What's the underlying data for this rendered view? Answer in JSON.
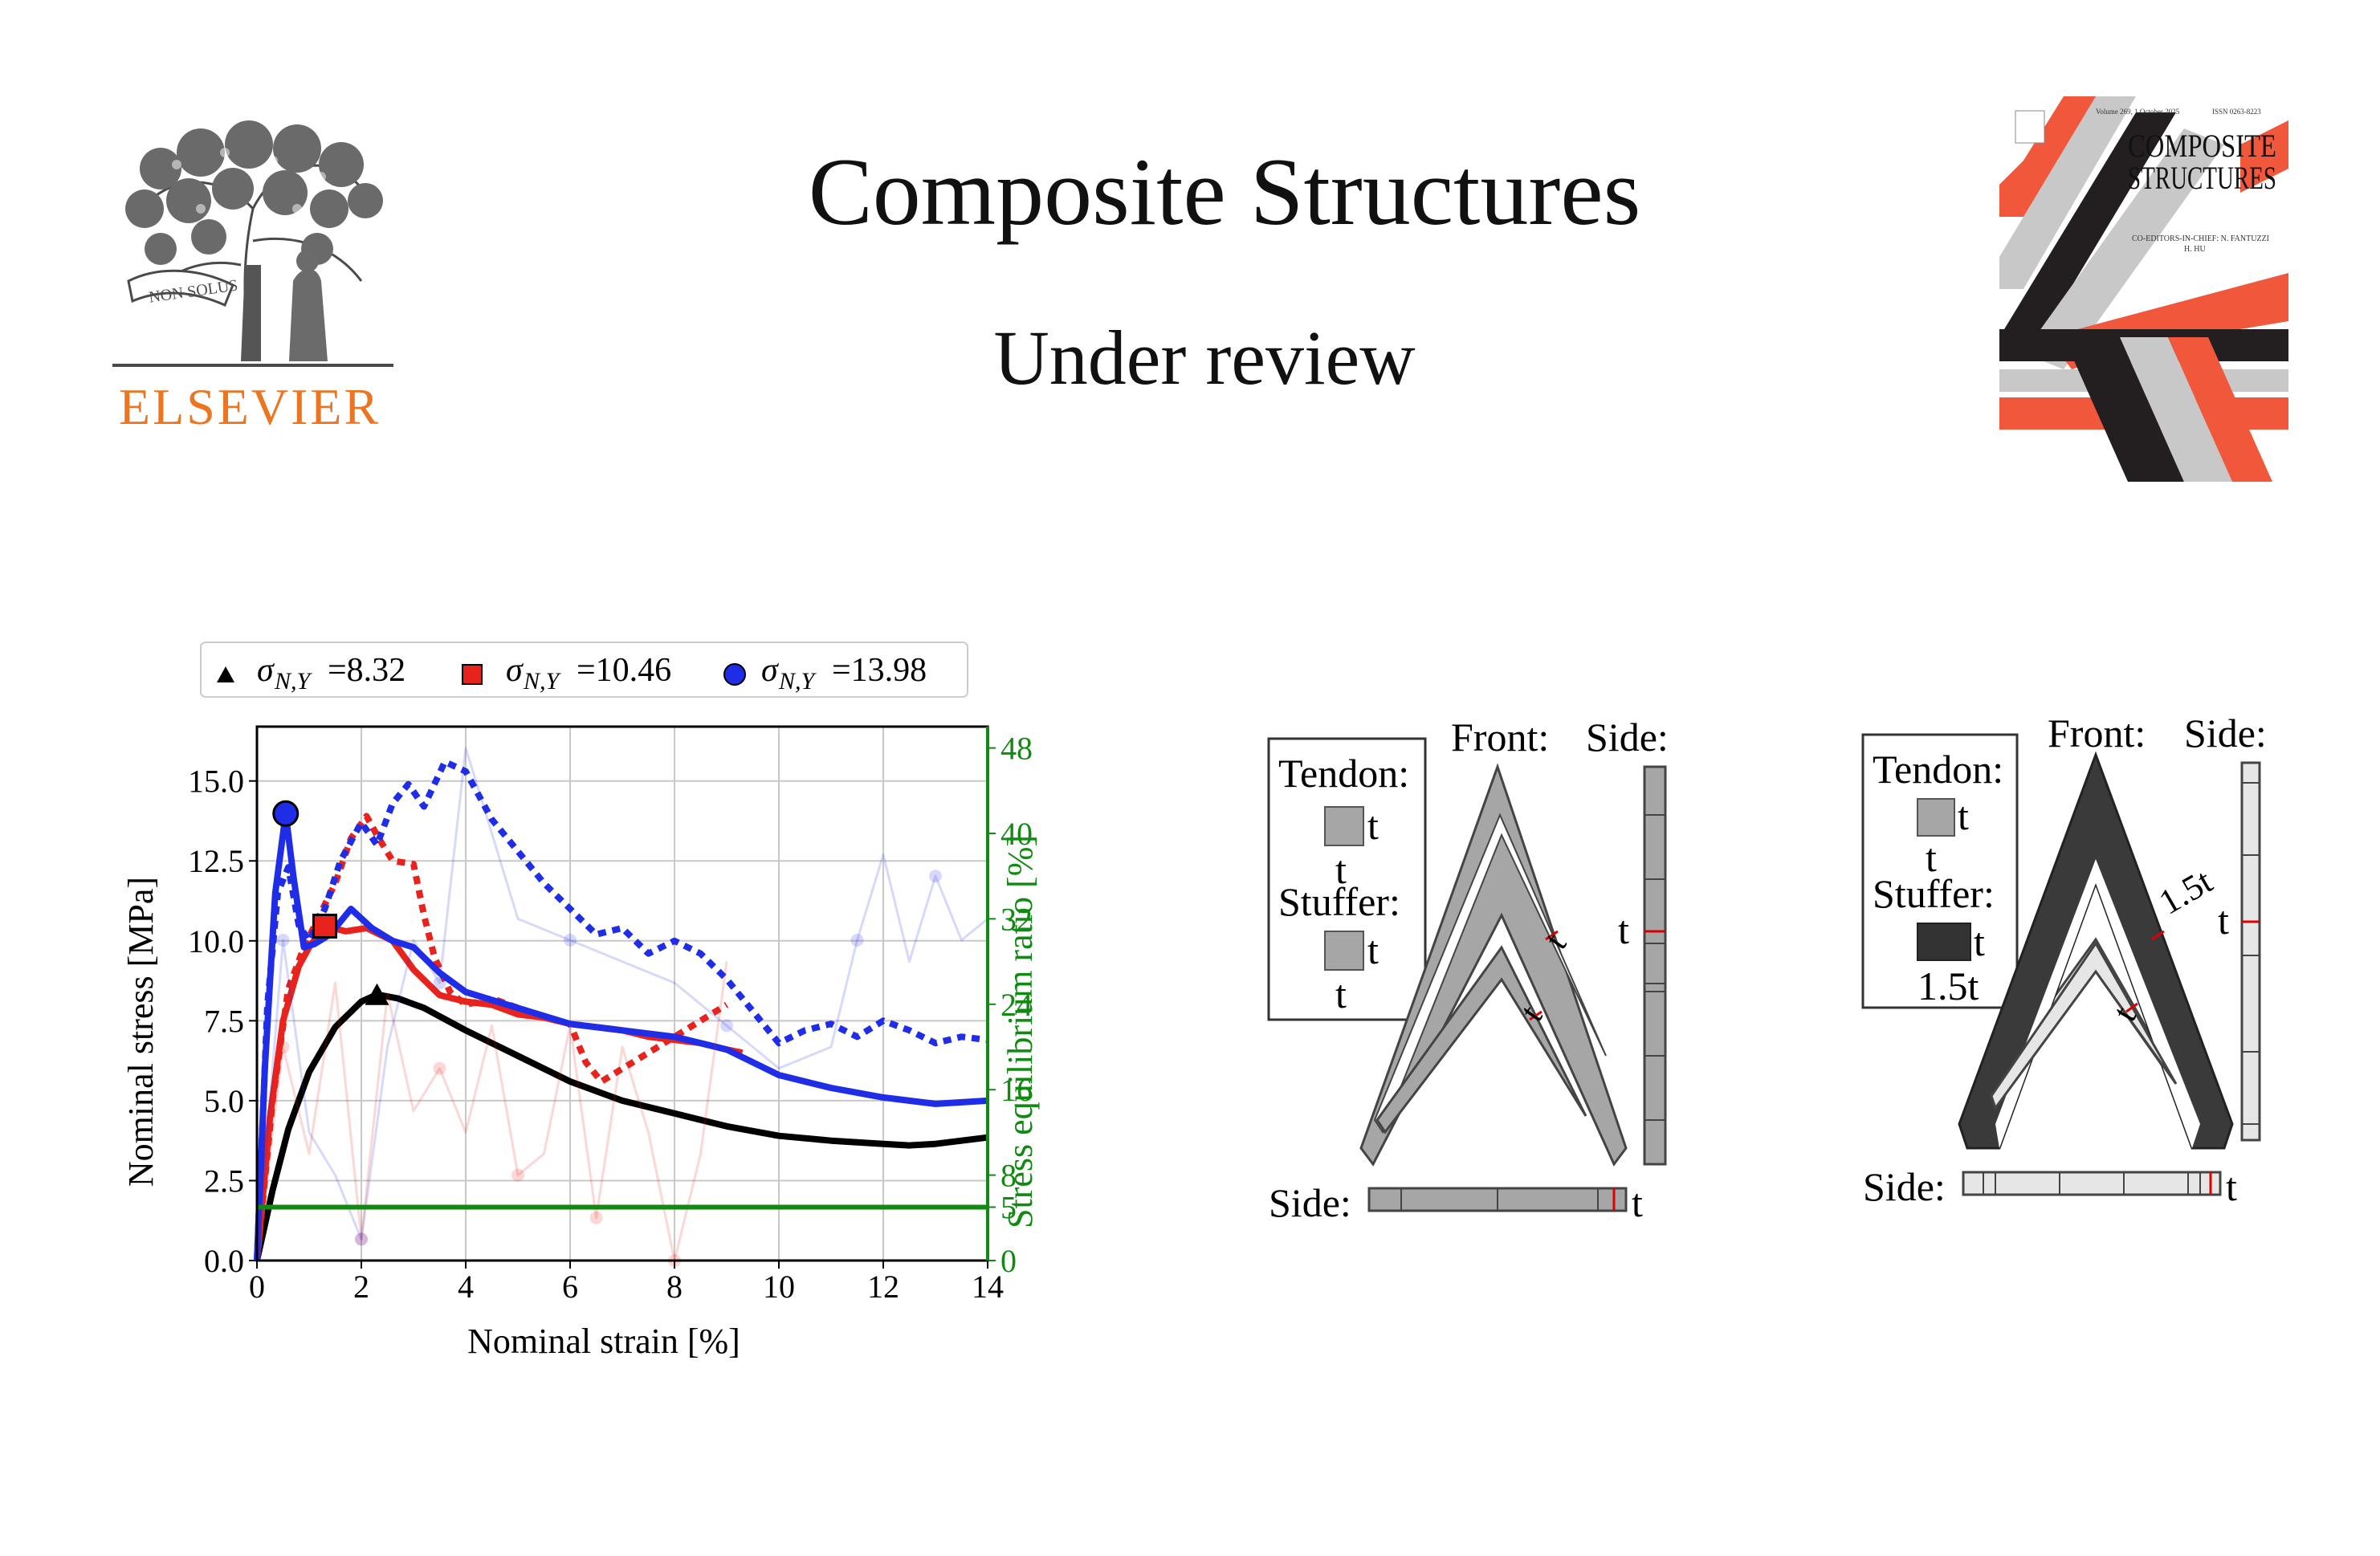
{
  "header": {
    "journal_title": "Composite Structures",
    "status": "Under review",
    "publisher_logo": {
      "icon": "elsevier-tree-icon",
      "wordmark": "ELSEVIER",
      "motto": "NON SOLUS",
      "color": "#ee7520"
    },
    "cover": {
      "title_line1": "COMPOSITE",
      "title_line2": "STRUCTURES",
      "top_left_text": "Volume 269, 1 October 2025",
      "top_right_text": "ISSN 0263-8223",
      "editors_line1": "CO-EDITORS-IN-CHIEF: N. FANTUZZI",
      "editors_line2": "H. HU",
      "colors": [
        "#f0573b",
        "#231f20",
        "#c8c8c8"
      ]
    }
  },
  "chart_data": {
    "type": "line",
    "xlabel": "Nominal strain [%]",
    "ylabel": "Nominal stress [MPa]",
    "y2label": "Stress equilibrium ratio [%]",
    "xlim": [
      0,
      14
    ],
    "ylim": [
      0,
      16.7
    ],
    "y2lim": [
      0,
      50
    ],
    "xticks": [
      "0",
      "2",
      "4",
      "6",
      "8",
      "10",
      "12",
      "14"
    ],
    "yticks": [
      "0.0",
      "2.5",
      "5.0",
      "7.5",
      "10.0",
      "12.5",
      "15.0"
    ],
    "y2ticks": [
      "0",
      "5",
      "8",
      "16",
      "24",
      "32",
      "40",
      "48"
    ],
    "grid": true,
    "legend_position": "top",
    "legend": [
      {
        "marker": "triangle",
        "color": "#000000",
        "label": "σ",
        "sub": "N,Y",
        "value": "=8.32"
      },
      {
        "marker": "square",
        "color": "#e8231e",
        "label": "σ",
        "sub": "N,Y",
        "value": "=10.46"
      },
      {
        "marker": "circle",
        "color": "#1f2ee6",
        "label": "σ",
        "sub": "N,Y",
        "value": "=13.98"
      }
    ],
    "series": [
      {
        "style": "solid",
        "color": "#000000",
        "axis": "left",
        "x": [
          0,
          0.3,
          0.6,
          1.0,
          1.5,
          2.0,
          2.3,
          2.7,
          3.2,
          4.0,
          5.0,
          6.0,
          7.0,
          8.0,
          9.0,
          10.0,
          11.0,
          12.0,
          12.5,
          13.0,
          14.0
        ],
        "y": [
          0,
          2.2,
          4.1,
          5.9,
          7.3,
          8.1,
          8.32,
          8.2,
          7.9,
          7.2,
          6.4,
          5.6,
          5.0,
          4.6,
          4.2,
          3.9,
          3.75,
          3.65,
          3.6,
          3.65,
          3.85
        ]
      },
      {
        "style": "solid",
        "color": "#e8231e",
        "axis": "left",
        "x": [
          0,
          0.25,
          0.5,
          0.8,
          1.0,
          1.3,
          1.7,
          2.1,
          2.6,
          3.0,
          3.5,
          4.0,
          4.5,
          5.0,
          5.5,
          6.0,
          6.5,
          7.0,
          7.5,
          8.0,
          8.5,
          9.0,
          9.3
        ],
        "y": [
          0,
          4.5,
          7.5,
          9.2,
          9.8,
          10.46,
          10.3,
          10.4,
          10.0,
          9.1,
          8.3,
          8.1,
          8.0,
          7.7,
          7.6,
          7.4,
          7.3,
          7.2,
          7.0,
          6.9,
          6.8,
          6.6,
          6.5
        ]
      },
      {
        "style": "dotted",
        "color": "#e8231e",
        "axis": "left",
        "x": [
          0,
          0.3,
          0.6,
          0.9,
          1.2,
          1.5,
          1.8,
          2.1,
          2.3,
          2.6,
          3.0,
          3.2,
          3.4,
          3.7,
          4.0,
          4.5,
          5.0,
          5.5,
          6.0,
          6.3,
          6.6,
          7.0,
          7.5,
          8.0,
          8.5,
          9.0
        ],
        "y": [
          0,
          5.0,
          8.5,
          9.8,
          10.8,
          11.8,
          13.2,
          13.9,
          13.3,
          12.5,
          12.4,
          10.8,
          9.5,
          8.4,
          8.0,
          8.2,
          7.9,
          7.6,
          7.4,
          6.2,
          5.6,
          6.0,
          6.5,
          7.0,
          7.5,
          8.0
        ]
      },
      {
        "style": "solid",
        "color": "#1f2ee6",
        "axis": "left",
        "x": [
          0,
          0.15,
          0.35,
          0.55,
          0.7,
          0.9,
          1.1,
          1.4,
          1.8,
          2.2,
          2.6,
          3.0,
          3.5,
          4.0,
          5.0,
          6.0,
          7.0,
          8.0,
          9.0,
          10.0,
          11.0,
          12.0,
          13.0,
          14.0
        ],
        "y": [
          0,
          6.0,
          11.5,
          13.98,
          12.0,
          9.8,
          9.9,
          10.2,
          11.0,
          10.4,
          10.0,
          9.8,
          9.0,
          8.4,
          7.9,
          7.4,
          7.2,
          7.0,
          6.6,
          5.8,
          5.4,
          5.1,
          4.9,
          5.0
        ]
      },
      {
        "style": "dotted",
        "color": "#1f2ee6",
        "axis": "left",
        "x": [
          0,
          0.2,
          0.4,
          0.6,
          0.8,
          1.0,
          1.3,
          1.6,
          2.0,
          2.3,
          2.6,
          2.9,
          3.2,
          3.6,
          4.0,
          4.5,
          5.0,
          5.5,
          6.0,
          6.5,
          7.0,
          7.5,
          8.0,
          8.5,
          9.0,
          9.5,
          10.0,
          10.5,
          11.0,
          11.5,
          12.0,
          12.5,
          13.0,
          13.5,
          14.0
        ],
        "y": [
          0,
          8.0,
          11.5,
          12.3,
          10.5,
          10.0,
          11.0,
          12.5,
          13.7,
          13.0,
          14.3,
          14.9,
          14.2,
          15.6,
          15.3,
          13.8,
          12.8,
          11.8,
          11.0,
          10.2,
          10.4,
          9.6,
          10.0,
          9.6,
          8.8,
          7.8,
          6.8,
          7.2,
          7.4,
          7.0,
          7.5,
          7.2,
          6.8,
          7.0,
          6.9
        ]
      },
      {
        "style": "faint",
        "color": "#e8231e",
        "axis": "right",
        "x": [
          0,
          0.5,
          1.0,
          1.5,
          2.0,
          2.5,
          3.0,
          3.5,
          4.0,
          4.5,
          5.0,
          5.5,
          6.0,
          6.5,
          7.0,
          7.5,
          8.0,
          8.5,
          9.0
        ],
        "y": [
          0,
          20,
          10,
          26,
          2,
          25,
          14,
          18,
          12,
          22,
          8,
          10,
          22,
          4,
          20,
          12,
          0,
          10,
          28
        ]
      },
      {
        "style": "faint",
        "color": "#1f2ee6",
        "axis": "right",
        "x": [
          0,
          0.5,
          1.0,
          1.5,
          2.0,
          2.5,
          3.0,
          3.5,
          4.0,
          5.0,
          6.0,
          7.0,
          8.0,
          9.0,
          10.0,
          11.0,
          11.5,
          12.0,
          12.5,
          13.0,
          13.5,
          14.0
        ],
        "y": [
          0,
          30,
          12,
          8,
          2,
          20,
          30,
          26,
          48,
          32,
          30,
          28,
          26,
          22,
          18,
          20,
          30,
          38,
          28,
          36,
          30,
          32
        ]
      },
      {
        "style": "solid",
        "color": "#118a11",
        "axis": "right",
        "x": [
          0,
          14
        ],
        "y": [
          5,
          5
        ]
      }
    ],
    "markers": [
      {
        "shape": "triangle",
        "x": 2.3,
        "y": 8.32,
        "color": "#000000"
      },
      {
        "shape": "square",
        "x": 1.3,
        "y": 10.46,
        "color": "#e8231e"
      },
      {
        "shape": "circle",
        "x": 0.55,
        "y": 13.98,
        "color": "#1f2ee6"
      }
    ]
  },
  "diagram1": {
    "tendon_label": "Tendon:",
    "tendon_dim_right": "t",
    "tendon_dim_bottom": "t",
    "stuffer_label": "Stuffer:",
    "stuffer_dim_right": "t",
    "stuffer_dim_bottom": "t",
    "front_label": "Front:",
    "side_label_top": "Side:",
    "side_label_bottom": "Side:",
    "front_outer_thickness": "t",
    "front_inner_thickness": "t",
    "side_vertical_thickness": "t",
    "side_horizontal_thickness": "t",
    "outer_fill": "#a6a6a6",
    "inner_fill": "#a6a6a6"
  },
  "diagram2": {
    "tendon_label": "Tendon:",
    "tendon_dim_right": "t",
    "tendon_dim_bottom": "t",
    "stuffer_label": "Stuffer:",
    "stuffer_dim_right": "t",
    "stuffer_dim_bottom": "1.5t",
    "front_label": "Front:",
    "side_label_top": "Side:",
    "side_label_bottom": "Side:",
    "front_outer_thickness": "1.5t",
    "front_inner_thickness": "t",
    "side_vertical_thickness": "t",
    "side_horizontal_thickness": "t",
    "outer_fill": "#3a3a3a",
    "inner_fill": "#e6e6e6"
  }
}
